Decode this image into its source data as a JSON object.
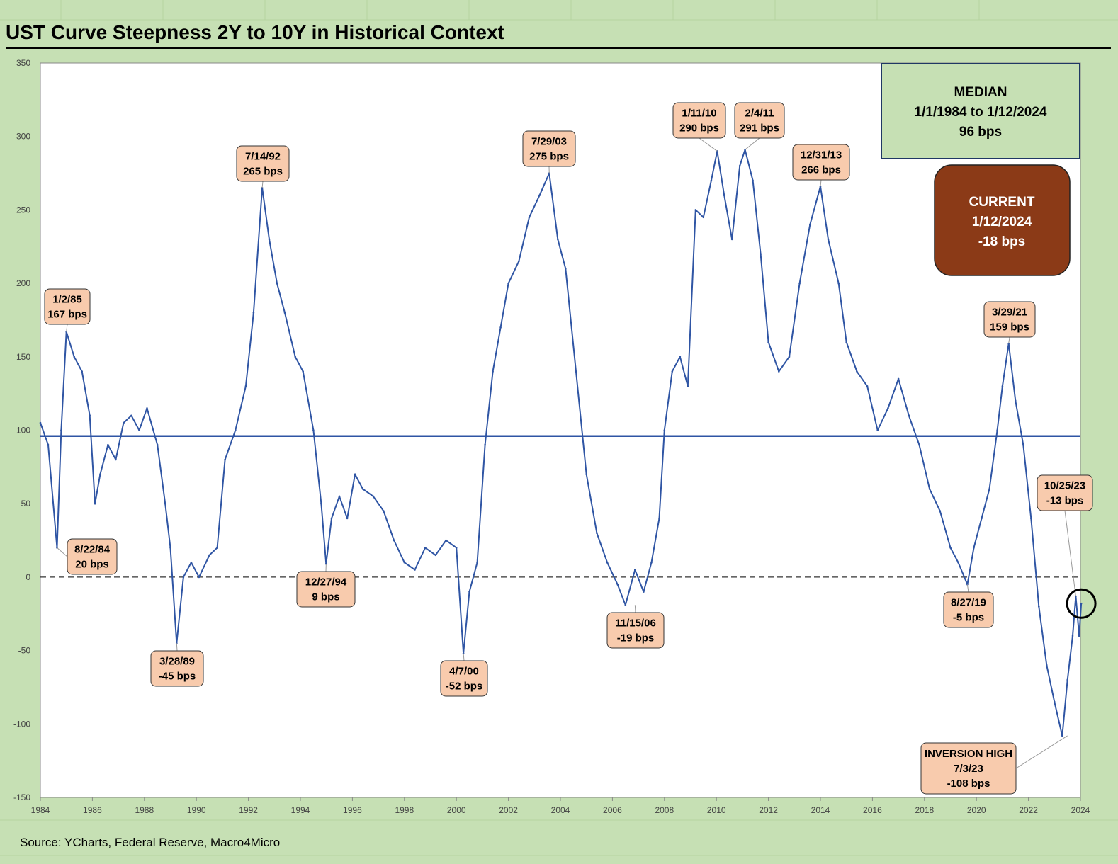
{
  "title": "UST Curve Steepness 2Y to 10Y in Historical Context",
  "source": "Source: YCharts, Federal Reserve, Macro4Micro",
  "colors": {
    "frame": "#c6e0b4",
    "line": "#2f55a4",
    "callout_fill": "#f8cbad",
    "median_box_fill": "#c6e0b4",
    "median_box_border": "#1f3864",
    "current_box_fill": "#8b3a17",
    "current_box_text": "#ffffff"
  },
  "median_box": {
    "line1": "MEDIAN",
    "line2": "1/1/1984 to 1/12/2024",
    "line3": "96 bps"
  },
  "current_box": {
    "line1": "CURRENT",
    "line2": "1/12/2024",
    "line3": "-18 bps"
  },
  "chart_data": {
    "type": "line",
    "title": "UST Curve Steepness 2Y to 10Y in Historical Context",
    "xlabel": "",
    "ylabel": "",
    "xlim": [
      1984,
      2024
    ],
    "ylim": [
      -150,
      350
    ],
    "x_ticks": [
      "1984",
      "1986",
      "1988",
      "1990",
      "1992",
      "1994",
      "1996",
      "1998",
      "2000",
      "2002",
      "2004",
      "2006",
      "2008",
      "2010",
      "2012",
      "2014",
      "2016",
      "2018",
      "2020",
      "2022",
      "2024"
    ],
    "y_ticks": [
      "350",
      "300",
      "250",
      "200",
      "150",
      "100",
      "50",
      "0",
      "-50",
      "-100",
      "-150"
    ],
    "grid": true,
    "reference_lines": [
      {
        "name": "median",
        "value": 96,
        "style": "solid"
      },
      {
        "name": "zero",
        "value": 0,
        "style": "dashed"
      }
    ],
    "series": [
      {
        "x": [
          1984.0,
          1984.3,
          1984.64,
          1984.8,
          1985.0,
          1985.3,
          1985.6,
          1985.9,
          1986.1,
          1986.3,
          1986.6,
          1986.9,
          1987.2,
          1987.5,
          1987.8,
          1988.1,
          1988.5,
          1988.8,
          1989.0,
          1989.24,
          1989.5,
          1989.8,
          1990.1,
          1990.5,
          1990.8,
          1991.1,
          1991.5,
          1991.9,
          1992.2,
          1992.53,
          1992.8,
          1993.1,
          1993.4,
          1993.8,
          1994.1,
          1994.5,
          1994.8,
          1994.99,
          1995.2,
          1995.5,
          1995.8,
          1996.1,
          1996.4,
          1996.8,
          1997.2,
          1997.6,
          1998.0,
          1998.4,
          1998.8,
          1999.2,
          1999.6,
          2000.0,
          2000.27,
          2000.5,
          2000.8,
          2001.1,
          2001.4,
          2001.7,
          2002.0,
          2002.4,
          2002.8,
          2003.2,
          2003.57,
          2003.9,
          2004.2,
          2004.6,
          2005.0,
          2005.4,
          2005.8,
          2006.2,
          2006.5,
          2006.87,
          2007.2,
          2007.5,
          2007.8,
          2008.0,
          2008.3,
          2008.6,
          2008.9,
          2009.2,
          2009.5,
          2009.8,
          2010.03,
          2010.3,
          2010.6,
          2010.9,
          2011.1,
          2011.4,
          2011.7,
          2012.0,
          2012.4,
          2012.8,
          2013.2,
          2013.6,
          2014.0,
          2014.3,
          2014.7,
          2015.0,
          2015.4,
          2015.8,
          2016.2,
          2016.6,
          2017.0,
          2017.4,
          2017.8,
          2018.2,
          2018.6,
          2019.0,
          2019.3,
          2019.65,
          2019.9,
          2020.2,
          2020.5,
          2020.8,
          2021.0,
          2021.24,
          2021.5,
          2021.8,
          2022.1,
          2022.4,
          2022.7,
          2023.0,
          2023.3,
          2023.5,
          2023.7,
          2023.82,
          2023.95,
          2024.03
        ],
        "values": [
          105,
          90,
          20,
          100,
          167,
          150,
          140,
          110,
          50,
          70,
          90,
          80,
          105,
          110,
          100,
          115,
          90,
          50,
          20,
          -45,
          0,
          10,
          0,
          15,
          20,
          80,
          100,
          130,
          180,
          265,
          230,
          200,
          180,
          150,
          140,
          100,
          50,
          9,
          40,
          55,
          40,
          70,
          60,
          55,
          45,
          25,
          10,
          5,
          20,
          15,
          25,
          20,
          -52,
          -10,
          10,
          90,
          140,
          170,
          200,
          215,
          245,
          260,
          275,
          230,
          210,
          140,
          70,
          30,
          10,
          -5,
          -19,
          5,
          -10,
          10,
          40,
          100,
          140,
          150,
          130,
          250,
          245,
          270,
          290,
          260,
          230,
          280,
          291,
          270,
          220,
          160,
          140,
          150,
          200,
          240,
          266,
          230,
          200,
          160,
          140,
          130,
          100,
          115,
          135,
          110,
          90,
          60,
          45,
          20,
          10,
          -5,
          20,
          40,
          60,
          100,
          130,
          159,
          120,
          90,
          40,
          -20,
          -60,
          -85,
          -108,
          -70,
          -40,
          -13,
          -40,
          -18
        ]
      }
    ],
    "annotations": [
      {
        "date": "1/2/85",
        "label": "167 bps",
        "x": 1985.0,
        "y": 167
      },
      {
        "date": "8/22/84",
        "label": "20 bps",
        "x": 1984.64,
        "y": 20
      },
      {
        "date": "3/28/89",
        "label": "-45 bps",
        "x": 1989.24,
        "y": -45
      },
      {
        "date": "7/14/92",
        "label": "265 bps",
        "x": 1992.53,
        "y": 265
      },
      {
        "date": "12/27/94",
        "label": "9 bps",
        "x": 1994.99,
        "y": 9
      },
      {
        "date": "4/7/00",
        "label": "-52 bps",
        "x": 2000.27,
        "y": -52
      },
      {
        "date": "7/29/03",
        "label": "275 bps",
        "x": 2003.57,
        "y": 275
      },
      {
        "date": "11/15/06",
        "label": "-19 bps",
        "x": 2006.87,
        "y": -19
      },
      {
        "date": "1/11/10",
        "label": "290 bps",
        "x": 2010.03,
        "y": 290
      },
      {
        "date": "2/4/11",
        "label": "291 bps",
        "x": 2011.1,
        "y": 291
      },
      {
        "date": "12/31/13",
        "label": "266 bps",
        "x": 2014.0,
        "y": 266
      },
      {
        "date": "8/27/19",
        "label": "-5 bps",
        "x": 2019.65,
        "y": -5
      },
      {
        "date": "3/29/21",
        "label": "159 bps",
        "x": 2021.24,
        "y": 159
      },
      {
        "date": "10/25/23",
        "label": "-13 bps",
        "x": 2023.82,
        "y": -13
      },
      {
        "date": "INVERSION HIGH",
        "date2": "7/3/23",
        "label": "-108 bps",
        "x": 2023.5,
        "y": -108
      }
    ],
    "current_marker": {
      "x": 2024.03,
      "y": -18
    }
  }
}
